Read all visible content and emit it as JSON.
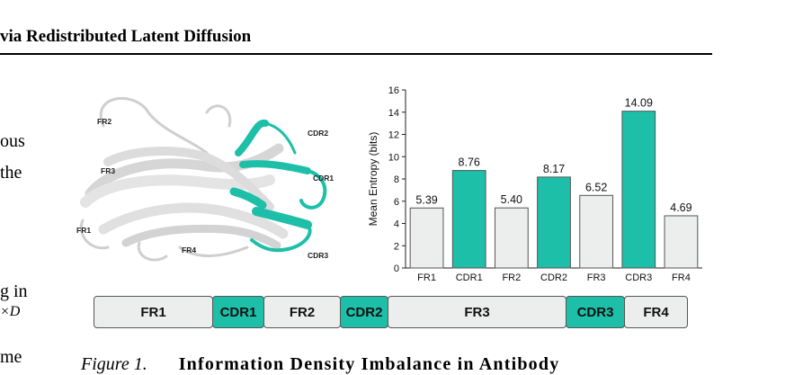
{
  "header": {
    "title": "via Redistributed Latent Diffusion"
  },
  "body_fragments": [
    "ous",
    "the",
    "g in",
    "×D",
    "me"
  ],
  "structure_labels": [
    "FR2",
    "FR3",
    "FR1",
    "FR4",
    "CDR2",
    "CDR1",
    "CDR3"
  ],
  "colors": {
    "cdr": "#1dbfa8",
    "fr": "#eceeee",
    "edge": "#555555"
  },
  "chart_data": {
    "type": "bar",
    "categories": [
      "FR1",
      "CDR1",
      "FR2",
      "CDR2",
      "FR3",
      "CDR3",
      "FR4"
    ],
    "values": [
      5.39,
      8.76,
      5.4,
      8.17,
      6.52,
      14.09,
      4.69
    ],
    "value_labels": [
      "5.39",
      "8.76",
      "5.40",
      "8.17",
      "6.52",
      "14.09",
      "4.69"
    ],
    "region_kind": [
      "fr",
      "cdr",
      "fr",
      "cdr",
      "fr",
      "cdr",
      "fr"
    ],
    "ylabel": "Mean Entropy (bits)",
    "xlabel": "",
    "title": "",
    "ylim": [
      0,
      16
    ],
    "yticks": [
      "0",
      "2",
      "4",
      "6",
      "8",
      "10",
      "12",
      "14",
      "16"
    ],
    "grid": false
  },
  "sequence_bar": [
    {
      "label": "FR1",
      "kind": "fr",
      "share": 0.199
    },
    {
      "label": "CDR1",
      "kind": "cdr",
      "share": 0.087
    },
    {
      "label": "FR2",
      "kind": "fr",
      "share": 0.129
    },
    {
      "label": "CDR2",
      "kind": "cdr",
      "share": 0.081
    },
    {
      "label": "FR3",
      "kind": "fr",
      "share": 0.298
    },
    {
      "label": "CDR3",
      "kind": "cdr",
      "share": 0.099
    },
    {
      "label": "FR4",
      "kind": "fr",
      "share": 0.107
    }
  ],
  "caption": {
    "label": "Figure 1.",
    "title": "Information Density Imbalance in Antibody"
  }
}
